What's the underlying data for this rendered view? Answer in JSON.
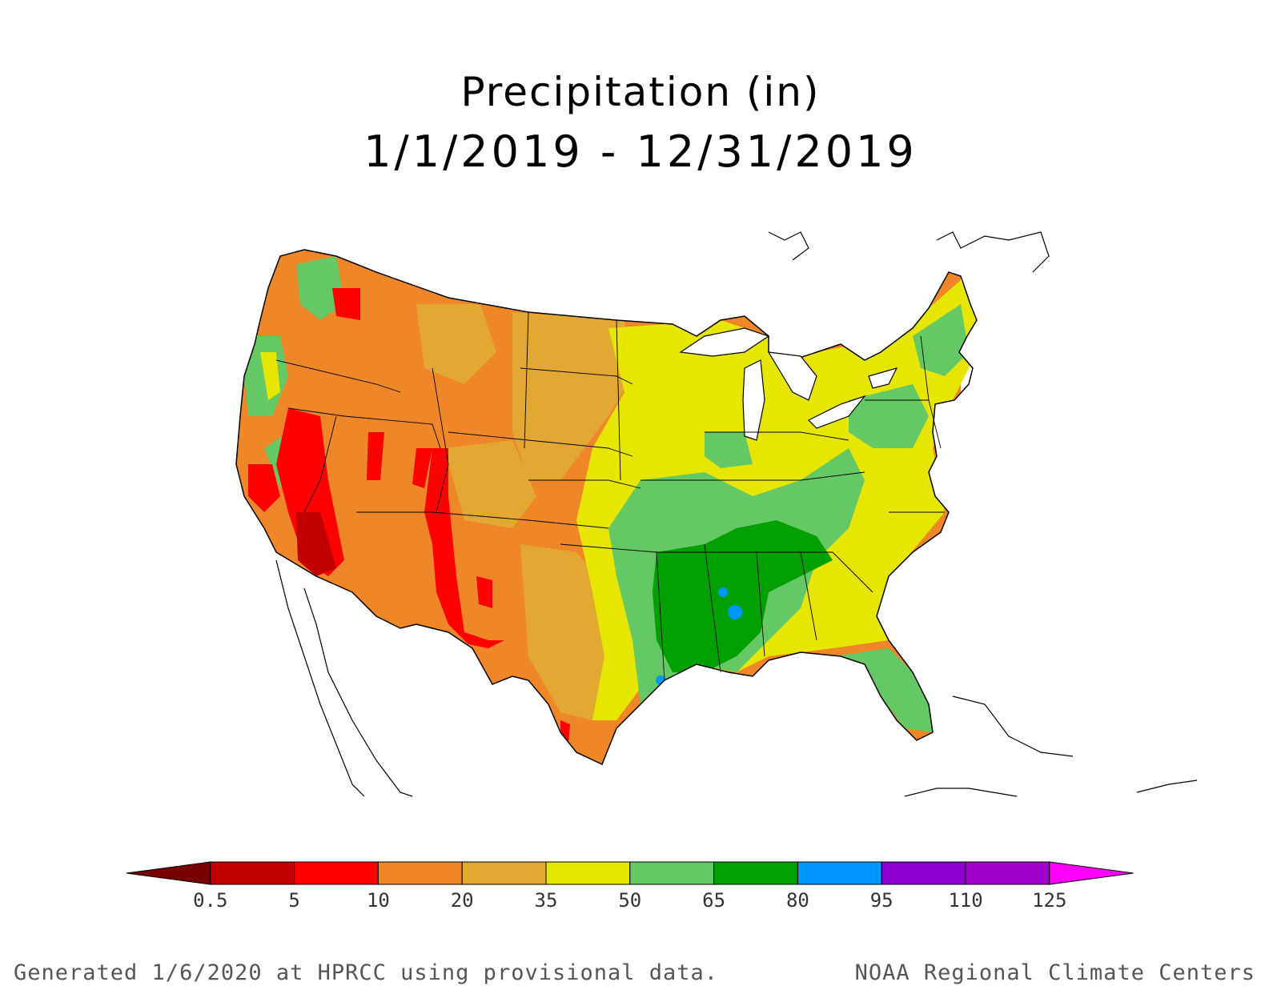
{
  "title": "Precipitation (in)",
  "subtitle": "1/1/2019 - 12/31/2019",
  "legend": {
    "labels": [
      "0.5",
      "5",
      "10",
      "20",
      "35",
      "50",
      "65",
      "80",
      "95",
      "110",
      "125"
    ],
    "colors": [
      "#7a0000",
      "#c30000",
      "#ff0000",
      "#ef8628",
      "#e3a832",
      "#e6e600",
      "#64c864",
      "#00a000",
      "#0096ff",
      "#8c00d2",
      "#a000c8",
      "#ff00ff"
    ]
  },
  "footer": {
    "left": "Generated 1/6/2020 at HPRCC using provisional data.",
    "right": "NOAA Regional Climate Centers"
  }
}
